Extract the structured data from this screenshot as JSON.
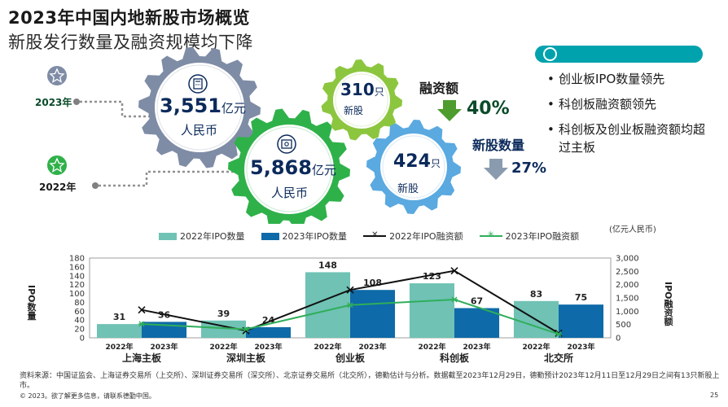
{
  "header": {
    "title": "2023年中国内地新股市场概览",
    "subtitle": "新股发行数量及融资规模均下降"
  },
  "infographic": {
    "year_2023": "2023年",
    "year_2022": "2022年",
    "gear_2023_amount": "3,551",
    "gear_2023_unit": "亿元",
    "gear_2023_sub": "人民币",
    "gear_2022_amount": "5,868",
    "gear_2022_unit": "亿元",
    "gear_2022_sub": "人民币",
    "gear_ipo_2023_num": "310",
    "gear_ipo_2023_unit": "只",
    "gear_ipo_2023_sub": "新股",
    "gear_ipo_2022_num": "424",
    "gear_ipo_2022_unit": "只",
    "gear_ipo_2022_sub": "新股",
    "funding_label": "融资额",
    "funding_change": "40%",
    "ipo_count_label": "新股数量",
    "ipo_count_change": "27%",
    "colors": {
      "gear_2023_amount": "#7f8ca6",
      "gear_2022_amount": "#2fb14a",
      "gear_ipo_2023": "#8cc63f",
      "gear_ipo_2022": "#5aa9e0",
      "down_green": "#4d9c2d",
      "down_gray": "#8a9bb0",
      "navy": "#0b2a5b"
    },
    "icons": [
      "star-icon",
      "calculator-icon",
      "safe-icon"
    ]
  },
  "bullets": [
    "创业板IPO数量领先",
    "科创板融资额领先",
    "科创板及创业板融资额均超过主板"
  ],
  "chart_data": {
    "type": "bar",
    "unit_note": "(亿元人民币)",
    "legend": [
      "2022年IPO数量",
      "2023年IPO数量",
      "2022年IPO融资额",
      "2023年IPO融资额"
    ],
    "ylabel_left": "IPO数量",
    "ylabel_right": "IPO融资额",
    "ylim_left": [
      0,
      180
    ],
    "ylim_right": [
      0,
      3000
    ],
    "yticks_left": [
      "0",
      "20",
      "40",
      "60",
      "80",
      "100",
      "120",
      "140",
      "160",
      "180"
    ],
    "yticks_right": [
      "0",
      "500",
      "1,000",
      "1,500",
      "2,000",
      "2,500",
      "3,000"
    ],
    "categories": [
      "上海主板",
      "深圳主板",
      "创业板",
      "科创板",
      "北交所"
    ],
    "year_labels": [
      "2022年",
      "2023年"
    ],
    "series": [
      {
        "name": "2022年IPO数量",
        "kind": "bar",
        "color": "#6fc2b4",
        "values": [
          31,
          39,
          148,
          123,
          83
        ]
      },
      {
        "name": "2023年IPO数量",
        "kind": "bar",
        "color": "#0e6aa8",
        "values": [
          36,
          24,
          108,
          67,
          75
        ]
      },
      {
        "name": "2022年IPO融资额",
        "kind": "line",
        "color": "#111111",
        "values": [
          1050,
          270,
          1800,
          2520,
          170
        ]
      },
      {
        "name": "2023年IPO融资额",
        "kind": "line",
        "color": "#2fae5a",
        "values": [
          520,
          320,
          1230,
          1440,
          140
        ]
      }
    ]
  },
  "source": "资料来源：中国证监会、上海证券交易所（上交所）、深圳证券交易所（深交所）、北京证券交易所（北交所），德勤估计与分析。数据截至2023年12月29日，德勤预计2023年12月11日至12月29日之间有13只新股上市。",
  "footer": "© 2023。欲了解更多信息，请联系德勤中国。",
  "page_number": "25"
}
